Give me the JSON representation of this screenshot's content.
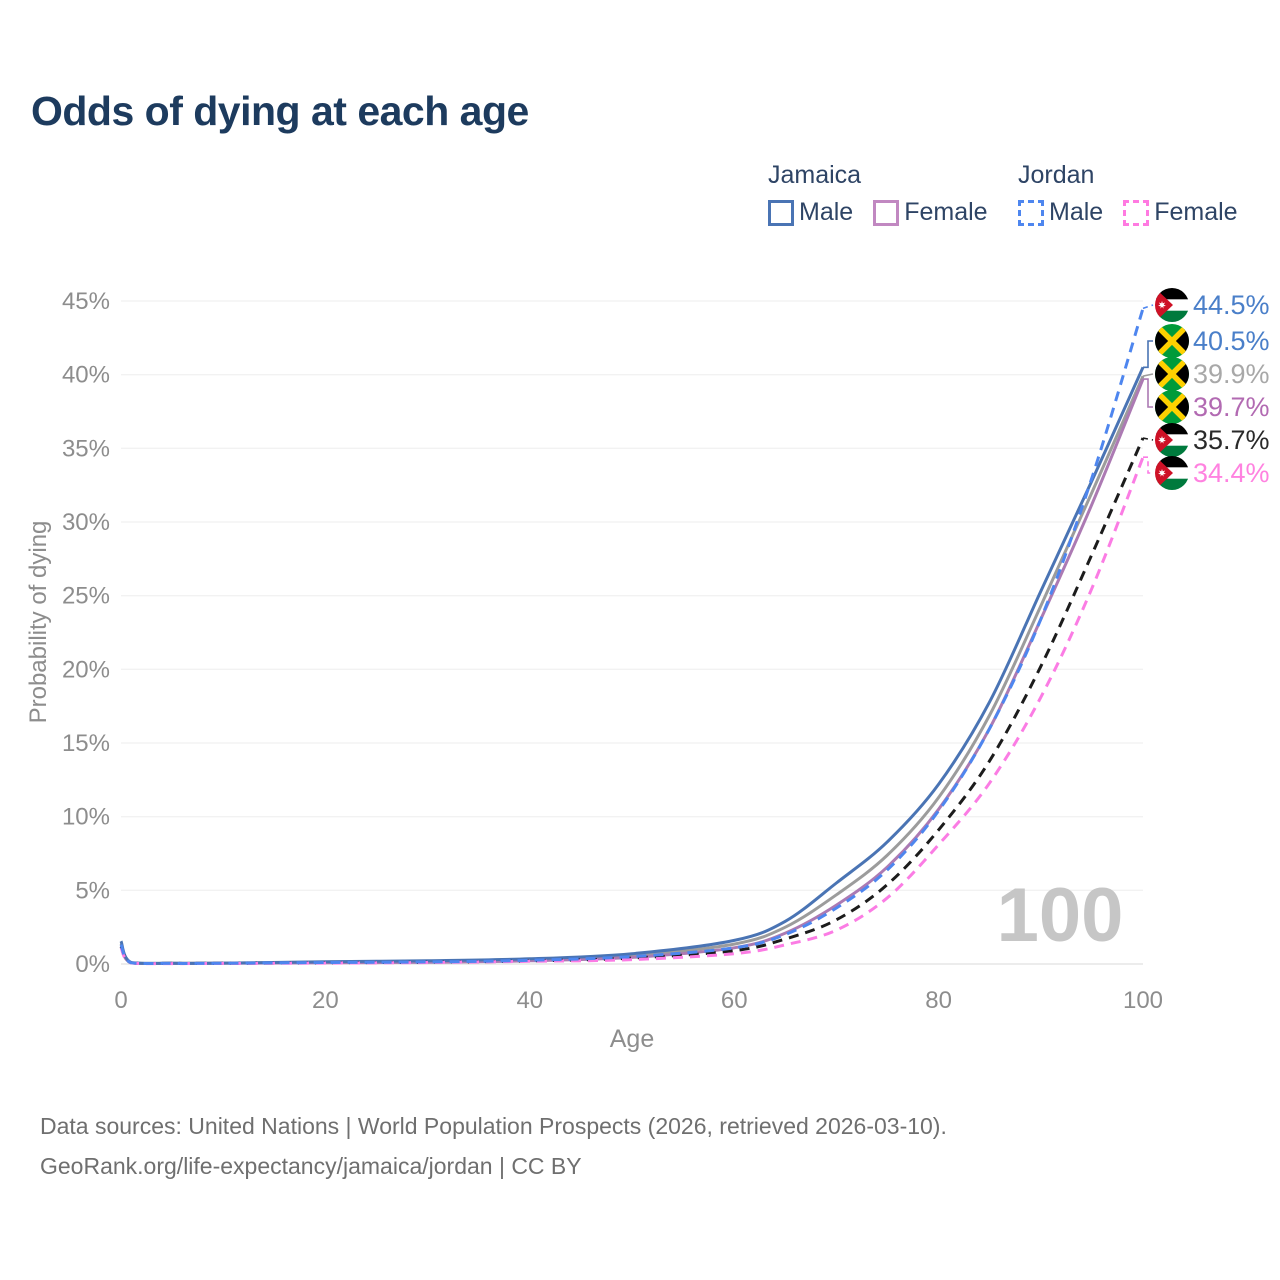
{
  "title": "Odds of dying at each age",
  "legend": {
    "groups": [
      {
        "country": "Jamaica",
        "line_style": "solid",
        "line_color": "#9e9e9e",
        "items": [
          {
            "label": "Male",
            "style": "solid",
            "color": "#4a74b4"
          },
          {
            "label": "Female",
            "style": "solid",
            "color": "#c188c1"
          }
        ]
      },
      {
        "country": "Jordan",
        "line_style": "dashed",
        "line_color": "#141414",
        "items": [
          {
            "label": "Male",
            "style": "dashed",
            "color": "#4e86ef"
          },
          {
            "label": "Female",
            "style": "dashed",
            "color": "#ff7ae1"
          }
        ]
      }
    ]
  },
  "footer": {
    "line1": "Data sources: United Nations | World Population Prospects (2026, retrieved 2026-03-10).",
    "line2": "GeoRank.org/life-expectancy/jamaica/jordan | CC BY"
  },
  "chart_data": {
    "type": "line",
    "title": "Odds of dying at each age",
    "xlabel": "Age",
    "ylabel": "Probability of dying",
    "xlim": [
      0,
      100
    ],
    "ylim": [
      0,
      45
    ],
    "grid": "horizontal",
    "legend_position": "top-right",
    "x_ticks": [
      "0",
      "20",
      "40",
      "60",
      "80",
      "100"
    ],
    "y_ticks": [
      "0%",
      "5%",
      "10%",
      "15%",
      "20%",
      "25%",
      "30%",
      "35%",
      "40%",
      "45%"
    ],
    "annotation_age": "100",
    "x": [
      0,
      1,
      5,
      10,
      20,
      30,
      40,
      50,
      60,
      65,
      70,
      75,
      80,
      85,
      90,
      95,
      100
    ],
    "series": [
      {
        "name": "Jamaica",
        "country": "Jamaica",
        "sex": "Both",
        "flag": "jamaica",
        "color": "#9c9c9c",
        "dash": false,
        "end_label": "39.9%",
        "end_label_color": "#a8a8a8",
        "values": [
          1.38,
          0.09,
          0.05,
          0.06,
          0.12,
          0.17,
          0.28,
          0.58,
          1.35,
          2.5,
          4.7,
          7.4,
          11.3,
          16.9,
          24.3,
          32.0,
          39.9
        ]
      },
      {
        "name": "Jamaica Female",
        "country": "Jamaica",
        "sex": "Female",
        "flag": "jamaica",
        "color": "#ac7ab3",
        "dash": false,
        "end_label": "39.7%",
        "end_label_color": "#b26ab2",
        "values": [
          1.2,
          0.08,
          0.04,
          0.05,
          0.08,
          0.12,
          0.22,
          0.45,
          1.1,
          2.1,
          4.0,
          6.6,
          10.5,
          16.0,
          23.4,
          31.2,
          39.7
        ]
      },
      {
        "name": "Jamaica Male",
        "country": "Jamaica",
        "sex": "Male",
        "flag": "jamaica",
        "color": "#4a74b4",
        "dash": false,
        "end_label": "40.5%",
        "end_label_color": "#4a7fc9",
        "values": [
          1.55,
          0.1,
          0.05,
          0.06,
          0.15,
          0.22,
          0.35,
          0.7,
          1.6,
          2.9,
          5.5,
          8.3,
          12.2,
          17.8,
          25.3,
          32.8,
          40.5
        ]
      },
      {
        "name": "Jordan",
        "country": "Jordan",
        "sex": "Both",
        "flag": "jordan",
        "color": "#1c1c1c",
        "dash": true,
        "end_label": "35.7%",
        "end_label_color": "#2a2a2a",
        "values": [
          1.2,
          0.08,
          0.04,
          0.05,
          0.08,
          0.12,
          0.21,
          0.4,
          0.9,
          1.7,
          3.0,
          5.4,
          9.1,
          13.8,
          20.2,
          27.8,
          35.7
        ]
      },
      {
        "name": "Jordan Female",
        "country": "Jordan",
        "sex": "Female",
        "flag": "jordan",
        "color": "#fb7ce4",
        "dash": true,
        "end_label": "34.4%",
        "end_label_color": "#ff82e0",
        "values": [
          1.1,
          0.07,
          0.03,
          0.04,
          0.06,
          0.1,
          0.18,
          0.3,
          0.7,
          1.3,
          2.3,
          4.5,
          8.1,
          12.3,
          18.1,
          25.5,
          34.4
        ]
      },
      {
        "name": "Jordan Male",
        "country": "Jordan",
        "sex": "Male",
        "flag": "jordan",
        "color": "#4e86ef",
        "dash": true,
        "end_label": "44.5%",
        "end_label_color": "#4a7fc9",
        "values": [
          1.3,
          0.08,
          0.04,
          0.05,
          0.1,
          0.14,
          0.25,
          0.5,
          1.1,
          2.0,
          3.8,
          6.4,
          10.4,
          16.0,
          23.4,
          33.0,
          44.5
        ]
      }
    ]
  }
}
